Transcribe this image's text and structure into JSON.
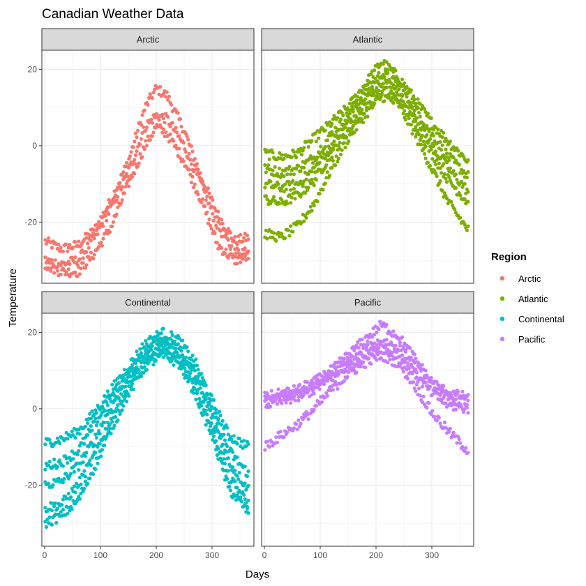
{
  "chart_data": {
    "type": "scatter",
    "title": "Canadian Weather Data",
    "xlabel": "Days",
    "ylabel": "Temperature",
    "xlim": [
      -5,
      375
    ],
    "ylim": [
      -36,
      25
    ],
    "x_ticks": [
      0,
      100,
      200,
      300
    ],
    "y_ticks": [
      -20,
      0,
      20
    ],
    "grid": true,
    "facet_layout": "2x2",
    "legend": {
      "title": "Region",
      "placement": "right",
      "entries": [
        {
          "name": "Arctic",
          "color": "#F8766D"
        },
        {
          "name": "Atlantic",
          "color": "#7CAE00"
        },
        {
          "name": "Continental",
          "color": "#00BFC4"
        },
        {
          "name": "Pacific",
          "color": "#C77CFF"
        }
      ]
    },
    "series": [
      {
        "name": "Arctic",
        "color": "#F8766D",
        "stations": [
          {
            "x": [
              0,
              30,
              60,
              90,
              120,
              150,
              180,
              200,
              220,
              250,
              280,
              310,
              340,
              365
            ],
            "y": [
              -25,
              -27,
              -26,
              -22,
              -14,
              -4,
              10,
              15,
              13,
              4,
              -8,
              -18,
              -25,
              -24
            ]
          },
          {
            "x": [
              0,
              30,
              60,
              90,
              120,
              150,
              180,
              200,
              220,
              250,
              280,
              310,
              340,
              365
            ],
            "y": [
              -30,
              -31,
              -30,
              -24,
              -16,
              -7,
              5,
              8,
              7,
              0,
              -10,
              -21,
              -28,
              -27
            ]
          },
          {
            "x": [
              0,
              30,
              60,
              90,
              120,
              150,
              180,
              200,
              220,
              250,
              280,
              310,
              340,
              365
            ],
            "y": [
              -31,
              -33,
              -33,
              -28,
              -21,
              -10,
              0,
              5,
              3,
              -4,
              -14,
              -26,
              -30,
              -29
            ]
          }
        ]
      },
      {
        "name": "Atlantic",
        "color": "#7CAE00",
        "stations": [
          {
            "x": [
              0,
              30,
              60,
              90,
              120,
              150,
              180,
              210,
              240,
              270,
              300,
              330,
              365
            ],
            "y": [
              -2,
              -3,
              -2,
              2,
              6,
              10,
              16,
              22,
              18,
              12,
              6,
              1,
              -4
            ]
          },
          {
            "x": [
              0,
              30,
              60,
              90,
              120,
              150,
              180,
              210,
              240,
              270,
              300,
              330,
              365
            ],
            "y": [
              -6,
              -7,
              -6,
              -3,
              3,
              8,
              14,
              19,
              16,
              10,
              3,
              -3,
              -8
            ]
          },
          {
            "x": [
              0,
              30,
              60,
              90,
              120,
              150,
              180,
              210,
              240,
              270,
              300,
              330,
              365
            ],
            "y": [
              -10,
              -11,
              -10,
              -6,
              0,
              6,
              12,
              17,
              14,
              8,
              0,
              -6,
              -12
            ]
          },
          {
            "x": [
              0,
              30,
              60,
              90,
              120,
              150,
              180,
              210,
              240,
              270,
              300,
              330,
              365
            ],
            "y": [
              -14,
              -15,
              -13,
              -9,
              -2,
              4,
              10,
              15,
              12,
              6,
              -2,
              -9,
              -15
            ]
          },
          {
            "x": [
              0,
              30,
              60,
              90,
              120,
              150,
              180,
              210,
              240,
              270,
              300,
              330,
              365
            ],
            "y": [
              -23,
              -24,
              -21,
              -15,
              -6,
              2,
              8,
              13,
              11,
              3,
              -6,
              -15,
              -22
            ]
          }
        ]
      },
      {
        "name": "Continental",
        "color": "#00BFC4",
        "stations": [
          {
            "x": [
              0,
              30,
              60,
              90,
              120,
              150,
              180,
              210,
              240,
              270,
              300,
              330,
              365
            ],
            "y": [
              -9,
              -8,
              -6,
              -1,
              5,
              11,
              17,
              20,
              18,
              12,
              2,
              -7,
              -10
            ]
          },
          {
            "x": [
              0,
              30,
              60,
              90,
              120,
              150,
              180,
              210,
              240,
              270,
              300,
              330,
              365
            ],
            "y": [
              -15,
              -14,
              -11,
              -4,
              3,
              9,
              15,
              18,
              16,
              10,
              0,
              -11,
              -17
            ]
          },
          {
            "x": [
              0,
              30,
              60,
              90,
              120,
              150,
              180,
              210,
              240,
              270,
              300,
              330,
              365
            ],
            "y": [
              -20,
              -19,
              -15,
              -8,
              1,
              8,
              14,
              17,
              14,
              8,
              -2,
              -14,
              -21
            ]
          },
          {
            "x": [
              0,
              30,
              60,
              90,
              120,
              150,
              180,
              210,
              240,
              270,
              300,
              330,
              365
            ],
            "y": [
              -26,
              -25,
              -20,
              -12,
              -2,
              6,
              12,
              15,
              13,
              6,
              -5,
              -18,
              -25
            ]
          },
          {
            "x": [
              0,
              30,
              60,
              90,
              120,
              150,
              180,
              210,
              240,
              270,
              300,
              330,
              365
            ],
            "y": [
              -30,
              -28,
              -24,
              -15,
              -5,
              4,
              11,
              14,
              12,
              4,
              -7,
              -21,
              -27
            ]
          }
        ]
      },
      {
        "name": "Pacific",
        "color": "#C77CFF",
        "stations": [
          {
            "x": [
              0,
              30,
              60,
              90,
              120,
              150,
              180,
              210,
              240,
              270,
              300,
              330,
              365
            ],
            "y": [
              3,
              4,
              5,
              7,
              10,
              14,
              18,
              22,
              19,
              13,
              7,
              4,
              3
            ]
          },
          {
            "x": [
              0,
              30,
              60,
              90,
              120,
              150,
              180,
              210,
              240,
              270,
              300,
              330,
              365
            ],
            "y": [
              2,
              3,
              4,
              6,
              9,
              12,
              15,
              18,
              16,
              11,
              6,
              3,
              2
            ]
          },
          {
            "x": [
              0,
              30,
              60,
              90,
              120,
              150,
              180,
              210,
              240,
              270,
              300,
              330,
              365
            ],
            "y": [
              1,
              2,
              3,
              5,
              8,
              11,
              14,
              16,
              14,
              9,
              4,
              1,
              0
            ]
          },
          {
            "x": [
              0,
              30,
              60,
              90,
              120,
              150,
              180,
              210,
              240,
              270,
              300,
              330,
              365
            ],
            "y": [
              -10,
              -7,
              -4,
              0,
              5,
              9,
              12,
              14,
              12,
              6,
              -1,
              -6,
              -11
            ]
          }
        ]
      }
    ]
  }
}
